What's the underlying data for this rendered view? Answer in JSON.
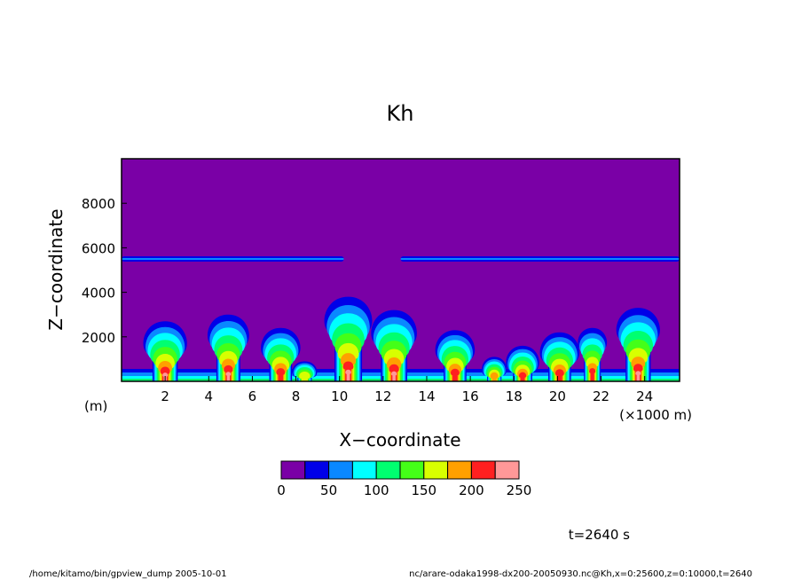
{
  "chart_data": {
    "type": "heatmap",
    "title": "Kh",
    "xlabel": "X−coordinate",
    "ylabel": "Z−coordinate",
    "x_unit_label": "(×1000 m)",
    "y_unit_label": "(m)",
    "xlim": [
      0,
      25.6
    ],
    "ylim": [
      0,
      10000
    ],
    "x_ticks": [
      2,
      4,
      6,
      8,
      10,
      12,
      14,
      16,
      18,
      20,
      22,
      24
    ],
    "x_tick_labels": [
      "2",
      "4",
      "6",
      "8",
      "10",
      "12",
      "14",
      "16",
      "18",
      "20",
      "22",
      "24"
    ],
    "y_ticks": [
      2000,
      4000,
      6000,
      8000
    ],
    "y_tick_labels": [
      "2000",
      "4000",
      "6000",
      "8000"
    ],
    "colorbar": {
      "levels": [
        0,
        25,
        50,
        75,
        100,
        125,
        150,
        175,
        200,
        225,
        250
      ],
      "tick_values": [
        0,
        50,
        100,
        150,
        200,
        250
      ],
      "tick_labels": [
        "0",
        "50",
        "100",
        "150",
        "200",
        "250"
      ],
      "colors": [
        "#7a00a6",
        "#0000e8",
        "#0a88ff",
        "#00ffff",
        "#00ff70",
        "#44ff18",
        "#d8ff00",
        "#ffa000",
        "#ff2020",
        "#ff9898"
      ]
    },
    "layer_band": {
      "z": 5500,
      "x_ranges": [
        [
          0,
          10.2
        ],
        [
          12.8,
          25.6
        ]
      ]
    },
    "plumes": [
      {
        "x": 2.0,
        "top": 2700,
        "w": 1.05
      },
      {
        "x": 4.9,
        "top": 3000,
        "w": 1.0
      },
      {
        "x": 7.3,
        "top": 2400,
        "w": 0.95
      },
      {
        "x": 8.4,
        "top": 900,
        "w": 0.6
      },
      {
        "x": 10.4,
        "top": 3800,
        "w": 1.15
      },
      {
        "x": 12.5,
        "top": 3200,
        "w": 1.1
      },
      {
        "x": 15.3,
        "top": 2300,
        "w": 0.95
      },
      {
        "x": 17.1,
        "top": 1100,
        "w": 0.6
      },
      {
        "x": 18.4,
        "top": 1600,
        "w": 0.8
      },
      {
        "x": 20.1,
        "top": 2200,
        "w": 0.95
      },
      {
        "x": 21.6,
        "top": 2400,
        "w": 0.7
      },
      {
        "x": 23.7,
        "top": 3300,
        "w": 1.05
      }
    ]
  },
  "info": {
    "time_label": "t=2640 s",
    "footer_left": "/home/kitamo/bin/gpview_dump  2005-10-01",
    "footer_right": "nc/arare-odaka1998-dx200-20050930.nc@Kh,x=0:25600,z=0:10000,t=2640"
  }
}
